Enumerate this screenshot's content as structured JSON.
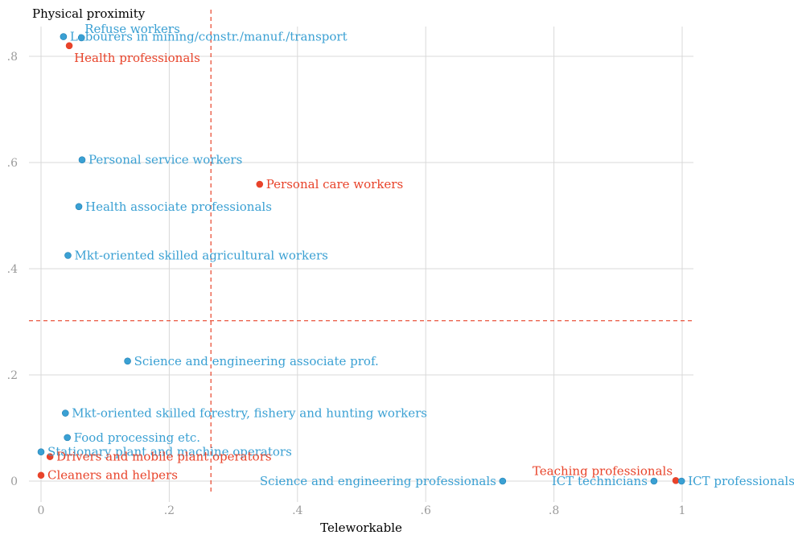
{
  "chart_data": {
    "type": "scatter",
    "title": "",
    "xlabel": "Teleworkable",
    "ylabel": "Physical proximity",
    "xlim": [
      -0.02,
      1.02
    ],
    "ylim": [
      -0.04,
      0.86
    ],
    "x_ticks": [
      {
        "value": 0,
        "label": "0"
      },
      {
        "value": 0.2,
        "label": ".2"
      },
      {
        "value": 0.4,
        "label": ".4"
      },
      {
        "value": 0.6,
        "label": ".6"
      },
      {
        "value": 0.8,
        "label": ".8"
      },
      {
        "value": 1,
        "label": "1"
      }
    ],
    "y_ticks": [
      {
        "value": 0,
        "label": "0"
      },
      {
        "value": 0.2,
        "label": ".2"
      },
      {
        "value": 0.4,
        "label": ".4"
      },
      {
        "value": 0.6,
        "label": ".6"
      },
      {
        "value": 0.8,
        "label": ".8"
      }
    ],
    "grid": true,
    "reference_lines": {
      "x": 0.265,
      "y": 0.302,
      "color": "#e8432a",
      "style": "dashed"
    },
    "colors": {
      "blue": "#3aa0d3",
      "red": "#e8432a",
      "grid": "#d9d9d9",
      "tick": "#9b9b9b",
      "axis_title": "#000000"
    },
    "points": [
      {
        "label": "Refuse workers",
        "x": 0.063,
        "y": 0.835,
        "color": "blue",
        "anchor": "above"
      },
      {
        "label": "Labourers in mining/constr./manuf./transport",
        "x": 0.035,
        "y": 0.837,
        "color": "blue",
        "anchor": "right"
      },
      {
        "label": "Health professionals",
        "x": 0.044,
        "y": 0.82,
        "color": "red",
        "anchor": "below"
      },
      {
        "label": "Personal service workers",
        "x": 0.064,
        "y": 0.605,
        "color": "blue",
        "anchor": "right"
      },
      {
        "label": "Personal care workers",
        "x": 0.341,
        "y": 0.559,
        "color": "red",
        "anchor": "right"
      },
      {
        "label": "Health associate professionals",
        "x": 0.059,
        "y": 0.517,
        "color": "blue",
        "anchor": "right"
      },
      {
        "label": "Mkt-oriented skilled agricultural workers",
        "x": 0.042,
        "y": 0.425,
        "color": "blue",
        "anchor": "right"
      },
      {
        "label": "Science and engineering associate prof.",
        "x": 0.135,
        "y": 0.226,
        "color": "blue",
        "anchor": "right"
      },
      {
        "label": "Mkt-oriented skilled forestry, fishery and hunting workers",
        "x": 0.038,
        "y": 0.128,
        "color": "blue",
        "anchor": "right"
      },
      {
        "label": "Food processing etc.",
        "x": 0.041,
        "y": 0.082,
        "color": "blue",
        "anchor": "right"
      },
      {
        "label": "Stationary plant and machine operators",
        "x": 0.0,
        "y": 0.055,
        "color": "blue",
        "anchor": "right"
      },
      {
        "label": "Drivers and mobile plant operators",
        "x": 0.014,
        "y": 0.046,
        "color": "red",
        "anchor": "right"
      },
      {
        "label": "Cleaners and helpers",
        "x": 0.0,
        "y": 0.011,
        "color": "red",
        "anchor": "right"
      },
      {
        "label": "Science and engineering professionals",
        "x": 0.72,
        "y": 0.0,
        "color": "blue",
        "anchor": "left"
      },
      {
        "label": "Teaching professionals",
        "x": 0.99,
        "y": 0.001,
        "color": "red",
        "anchor": "above-left"
      },
      {
        "label": "ICT technicians",
        "x": 0.956,
        "y": 0.0,
        "color": "blue",
        "anchor": "left"
      },
      {
        "label": "ICT professionals",
        "x": 0.999,
        "y": 0.0,
        "color": "blue",
        "anchor": "right"
      }
    ]
  }
}
